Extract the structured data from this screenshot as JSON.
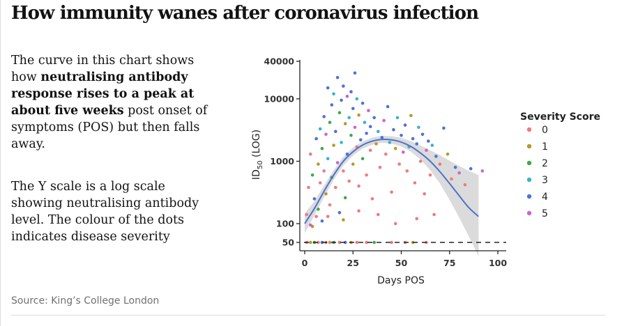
{
  "header": {
    "title": "How immunity wanes after coronavirus infection"
  },
  "description": {
    "p1_a": "The curve in this chart shows how ",
    "p1_b": "neutralising antibody response rises to a peak at about five weeks",
    "p1_c": " post onset of symptoms (POS) but then falls away.",
    "p2": "The Y scale is a log scale showing neutralising antibody level. The colour of the dots indicates disease severity"
  },
  "footer": {
    "source": "Source: King’s College London"
  },
  "chart_data": {
    "type": "scatter",
    "title": "",
    "xlabel": "Days POS",
    "ylabel_main": "ID",
    "ylabel_sub": "50",
    "ylabel_tail": " (LOG)",
    "y_scale": "log",
    "xlim": [
      -3,
      104
    ],
    "ylim": [
      40,
      46000
    ],
    "x_ticks": [
      0,
      25,
      50,
      75,
      100
    ],
    "y_ticks": [
      50,
      100,
      1000,
      10000,
      40000
    ],
    "y_tick_labels": [
      "50",
      "100",
      "1000",
      "10000",
      "40000"
    ],
    "threshold": 50,
    "legend": {
      "title": "Severity Score",
      "position": "right",
      "entries": [
        "0",
        "1",
        "2",
        "3",
        "4",
        "5"
      ]
    },
    "colors": {
      "0": "#ec7b7d",
      "1": "#b49a2c",
      "2": "#3fa84a",
      "3": "#38b3c9",
      "4": "#4e72d6",
      "5": "#cc63d0",
      "fit_line": "#4b73cc",
      "confidence_band": "#cfcfcf"
    },
    "fit_curve": [
      {
        "x": 0,
        "y": 100
      },
      {
        "x": 5,
        "y": 175
      },
      {
        "x": 10,
        "y": 330
      },
      {
        "x": 15,
        "y": 600
      },
      {
        "x": 20,
        "y": 1000
      },
      {
        "x": 25,
        "y": 1420
      },
      {
        "x": 30,
        "y": 1820
      },
      {
        "x": 35,
        "y": 2100
      },
      {
        "x": 40,
        "y": 2240
      },
      {
        "x": 45,
        "y": 2200
      },
      {
        "x": 50,
        "y": 2020
      },
      {
        "x": 55,
        "y": 1720
      },
      {
        "x": 60,
        "y": 1350
      },
      {
        "x": 65,
        "y": 1000
      },
      {
        "x": 70,
        "y": 680
      },
      {
        "x": 75,
        "y": 440
      },
      {
        "x": 80,
        "y": 280
      },
      {
        "x": 85,
        "y": 180
      },
      {
        "x": 90,
        "y": 130
      }
    ],
    "band": [
      {
        "x": 0,
        "lo": 70,
        "hi": 145
      },
      {
        "x": 5,
        "lo": 135,
        "hi": 230
      },
      {
        "x": 10,
        "lo": 265,
        "hi": 410
      },
      {
        "x": 15,
        "lo": 500,
        "hi": 720
      },
      {
        "x": 20,
        "lo": 850,
        "hi": 1180
      },
      {
        "x": 25,
        "lo": 1230,
        "hi": 1650
      },
      {
        "x": 30,
        "lo": 1600,
        "hi": 2080
      },
      {
        "x": 35,
        "lo": 1850,
        "hi": 2400
      },
      {
        "x": 40,
        "lo": 1980,
        "hi": 2560
      },
      {
        "x": 45,
        "lo": 1920,
        "hi": 2520
      },
      {
        "x": 50,
        "lo": 1720,
        "hi": 2380
      },
      {
        "x": 55,
        "lo": 1420,
        "hi": 2100
      },
      {
        "x": 60,
        "lo": 1060,
        "hi": 1780
      },
      {
        "x": 65,
        "lo": 720,
        "hi": 1500
      },
      {
        "x": 70,
        "lo": 440,
        "hi": 1250
      },
      {
        "x": 75,
        "lo": 240,
        "hi": 1020
      },
      {
        "x": 80,
        "lo": 125,
        "hi": 840
      },
      {
        "x": 85,
        "lo": 62,
        "hi": 700
      },
      {
        "x": 90,
        "lo": 30,
        "hi": 600
      }
    ],
    "points": [
      {
        "x": 1,
        "y": 50,
        "s": 0
      },
      {
        "x": 3,
        "y": 50,
        "s": 1
      },
      {
        "x": 5,
        "y": 50,
        "s": 2
      },
      {
        "x": 7,
        "y": 50,
        "s": 0
      },
      {
        "x": 9,
        "y": 50,
        "s": 4
      },
      {
        "x": 11,
        "y": 50,
        "s": 1
      },
      {
        "x": 13,
        "y": 50,
        "s": 0
      },
      {
        "x": 15,
        "y": 50,
        "s": 2
      },
      {
        "x": 18,
        "y": 50,
        "s": 0
      },
      {
        "x": 21,
        "y": 50,
        "s": 4
      },
      {
        "x": 24,
        "y": 50,
        "s": 1
      },
      {
        "x": 27,
        "y": 50,
        "s": 0
      },
      {
        "x": 32,
        "y": 50,
        "s": 0
      },
      {
        "x": 36,
        "y": 50,
        "s": 2
      },
      {
        "x": 45,
        "y": 50,
        "s": 0
      },
      {
        "x": 52,
        "y": 50,
        "s": 0
      },
      {
        "x": 56,
        "y": 50,
        "s": 1
      },
      {
        "x": 63,
        "y": 50,
        "s": 0
      },
      {
        "x": 1,
        "y": 140,
        "s": 0
      },
      {
        "x": 2,
        "y": 380,
        "s": 0
      },
      {
        "x": 3,
        "y": 1300,
        "s": 0
      },
      {
        "x": 4,
        "y": 90,
        "s": 1
      },
      {
        "x": 4,
        "y": 600,
        "s": 2
      },
      {
        "x": 5,
        "y": 250,
        "s": 4
      },
      {
        "x": 6,
        "y": 2300,
        "s": 4
      },
      {
        "x": 6,
        "y": 130,
        "s": 0
      },
      {
        "x": 7,
        "y": 900,
        "s": 1
      },
      {
        "x": 7,
        "y": 170,
        "s": 2
      },
      {
        "x": 8,
        "y": 450,
        "s": 0
      },
      {
        "x": 8,
        "y": 3300,
        "s": 3
      },
      {
        "x": 9,
        "y": 110,
        "s": 4
      },
      {
        "x": 9,
        "y": 1600,
        "s": 2
      },
      {
        "x": 10,
        "y": 700,
        "s": 0
      },
      {
        "x": 10,
        "y": 5200,
        "s": 4
      },
      {
        "x": 11,
        "y": 300,
        "s": 1
      },
      {
        "x": 11,
        "y": 2700,
        "s": 5
      },
      {
        "x": 12,
        "y": 1100,
        "s": 3
      },
      {
        "x": 12,
        "y": 15000,
        "s": 4
      },
      {
        "x": 13,
        "y": 200,
        "s": 0
      },
      {
        "x": 13,
        "y": 4200,
        "s": 2
      },
      {
        "x": 14,
        "y": 8000,
        "s": 4
      },
      {
        "x": 14,
        "y": 550,
        "s": 2
      },
      {
        "x": 15,
        "y": 1800,
        "s": 1
      },
      {
        "x": 15,
        "y": 12000,
        "s": 3
      },
      {
        "x": 16,
        "y": 380,
        "s": 0
      },
      {
        "x": 16,
        "y": 3000,
        "s": 4
      },
      {
        "x": 17,
        "y": 22000,
        "s": 4
      },
      {
        "x": 17,
        "y": 950,
        "s": 5
      },
      {
        "x": 18,
        "y": 6000,
        "s": 2
      },
      {
        "x": 18,
        "y": 150,
        "s": 4
      },
      {
        "x": 19,
        "y": 2000,
        "s": 3
      },
      {
        "x": 19,
        "y": 9500,
        "s": 4
      },
      {
        "x": 20,
        "y": 700,
        "s": 0
      },
      {
        "x": 20,
        "y": 16000,
        "s": 4
      },
      {
        "x": 21,
        "y": 4000,
        "s": 1
      },
      {
        "x": 21,
        "y": 260,
        "s": 2
      },
      {
        "x": 22,
        "y": 1300,
        "s": 4
      },
      {
        "x": 22,
        "y": 11000,
        "s": 5
      },
      {
        "x": 23,
        "y": 5000,
        "s": 3
      },
      {
        "x": 23,
        "y": 480,
        "s": 0
      },
      {
        "x": 24,
        "y": 2600,
        "s": 2
      },
      {
        "x": 24,
        "y": 13000,
        "s": 4
      },
      {
        "x": 25,
        "y": 900,
        "s": 1
      },
      {
        "x": 25,
        "y": 7000,
        "s": 4
      },
      {
        "x": 26,
        "y": 26000,
        "s": 4
      },
      {
        "x": 26,
        "y": 3500,
        "s": 5
      },
      {
        "x": 27,
        "y": 1700,
        "s": 0
      },
      {
        "x": 27,
        "y": 10000,
        "s": 3
      },
      {
        "x": 28,
        "y": 5500,
        "s": 1
      },
      {
        "x": 28,
        "y": 400,
        "s": 0
      },
      {
        "x": 29,
        "y": 2200,
        "s": 4
      },
      {
        "x": 30,
        "y": 8500,
        "s": 4
      },
      {
        "x": 30,
        "y": 1100,
        "s": 2
      },
      {
        "x": 31,
        "y": 4200,
        "s": 3
      },
      {
        "x": 32,
        "y": 600,
        "s": 0
      },
      {
        "x": 32,
        "y": 2800,
        "s": 4
      },
      {
        "x": 33,
        "y": 6500,
        "s": 5
      },
      {
        "x": 34,
        "y": 1500,
        "s": 0
      },
      {
        "x": 34,
        "y": 3600,
        "s": 4
      },
      {
        "x": 35,
        "y": 250,
        "s": 0
      },
      {
        "x": 36,
        "y": 5000,
        "s": 4
      },
      {
        "x": 37,
        "y": 1900,
        "s": 1
      },
      {
        "x": 38,
        "y": 3000,
        "s": 3
      },
      {
        "x": 39,
        "y": 800,
        "s": 0
      },
      {
        "x": 40,
        "y": 2400,
        "s": 4
      },
      {
        "x": 41,
        "y": 4500,
        "s": 5
      },
      {
        "x": 42,
        "y": 1300,
        "s": 0
      },
      {
        "x": 43,
        "y": 7500,
        "s": 4
      },
      {
        "x": 44,
        "y": 2000,
        "s": 3
      },
      {
        "x": 45,
        "y": 320,
        "s": 0
      },
      {
        "x": 46,
        "y": 3200,
        "s": 4
      },
      {
        "x": 47,
        "y": 1600,
        "s": 1
      },
      {
        "x": 48,
        "y": 5000,
        "s": 3
      },
      {
        "x": 49,
        "y": 900,
        "s": 0
      },
      {
        "x": 50,
        "y": 2600,
        "s": 4
      },
      {
        "x": 51,
        "y": 1400,
        "s": 5
      },
      {
        "x": 52,
        "y": 3800,
        "s": 4
      },
      {
        "x": 53,
        "y": 700,
        "s": 0
      },
      {
        "x": 54,
        "y": 1700,
        "s": 3
      },
      {
        "x": 55,
        "y": 5400,
        "s": 1
      },
      {
        "x": 56,
        "y": 2300,
        "s": 4
      },
      {
        "x": 57,
        "y": 450,
        "s": 0
      },
      {
        "x": 58,
        "y": 1900,
        "s": 4
      },
      {
        "x": 59,
        "y": 3500,
        "s": 3
      },
      {
        "x": 60,
        "y": 1000,
        "s": 0
      },
      {
        "x": 61,
        "y": 2700,
        "s": 4
      },
      {
        "x": 62,
        "y": 300,
        "s": 0
      },
      {
        "x": 63,
        "y": 1500,
        "s": 5
      },
      {
        "x": 64,
        "y": 2100,
        "s": 4
      },
      {
        "x": 65,
        "y": 600,
        "s": 0
      },
      {
        "x": 66,
        "y": 1800,
        "s": 3
      },
      {
        "x": 68,
        "y": 1200,
        "s": 4
      },
      {
        "x": 70,
        "y": 900,
        "s": 0
      },
      {
        "x": 72,
        "y": 3400,
        "s": 4
      },
      {
        "x": 74,
        "y": 1300,
        "s": 1
      },
      {
        "x": 76,
        "y": 520,
        "s": 0
      },
      {
        "x": 78,
        "y": 800,
        "s": 4
      },
      {
        "x": 80,
        "y": 650,
        "s": 5
      },
      {
        "x": 83,
        "y": 420,
        "s": 0
      },
      {
        "x": 86,
        "y": 760,
        "s": 4
      },
      {
        "x": 92,
        "y": 700,
        "s": 5
      },
      {
        "x": 3,
        "y": 95,
        "s": 5
      },
      {
        "x": 12,
        "y": 130,
        "s": 0
      },
      {
        "x": 20,
        "y": 115,
        "s": 1
      },
      {
        "x": 28,
        "y": 160,
        "s": 0
      },
      {
        "x": 38,
        "y": 140,
        "s": 0
      },
      {
        "x": 47,
        "y": 100,
        "s": 0
      },
      {
        "x": 58,
        "y": 120,
        "s": 0
      },
      {
        "x": 67,
        "y": 140,
        "s": 0
      }
    ]
  }
}
